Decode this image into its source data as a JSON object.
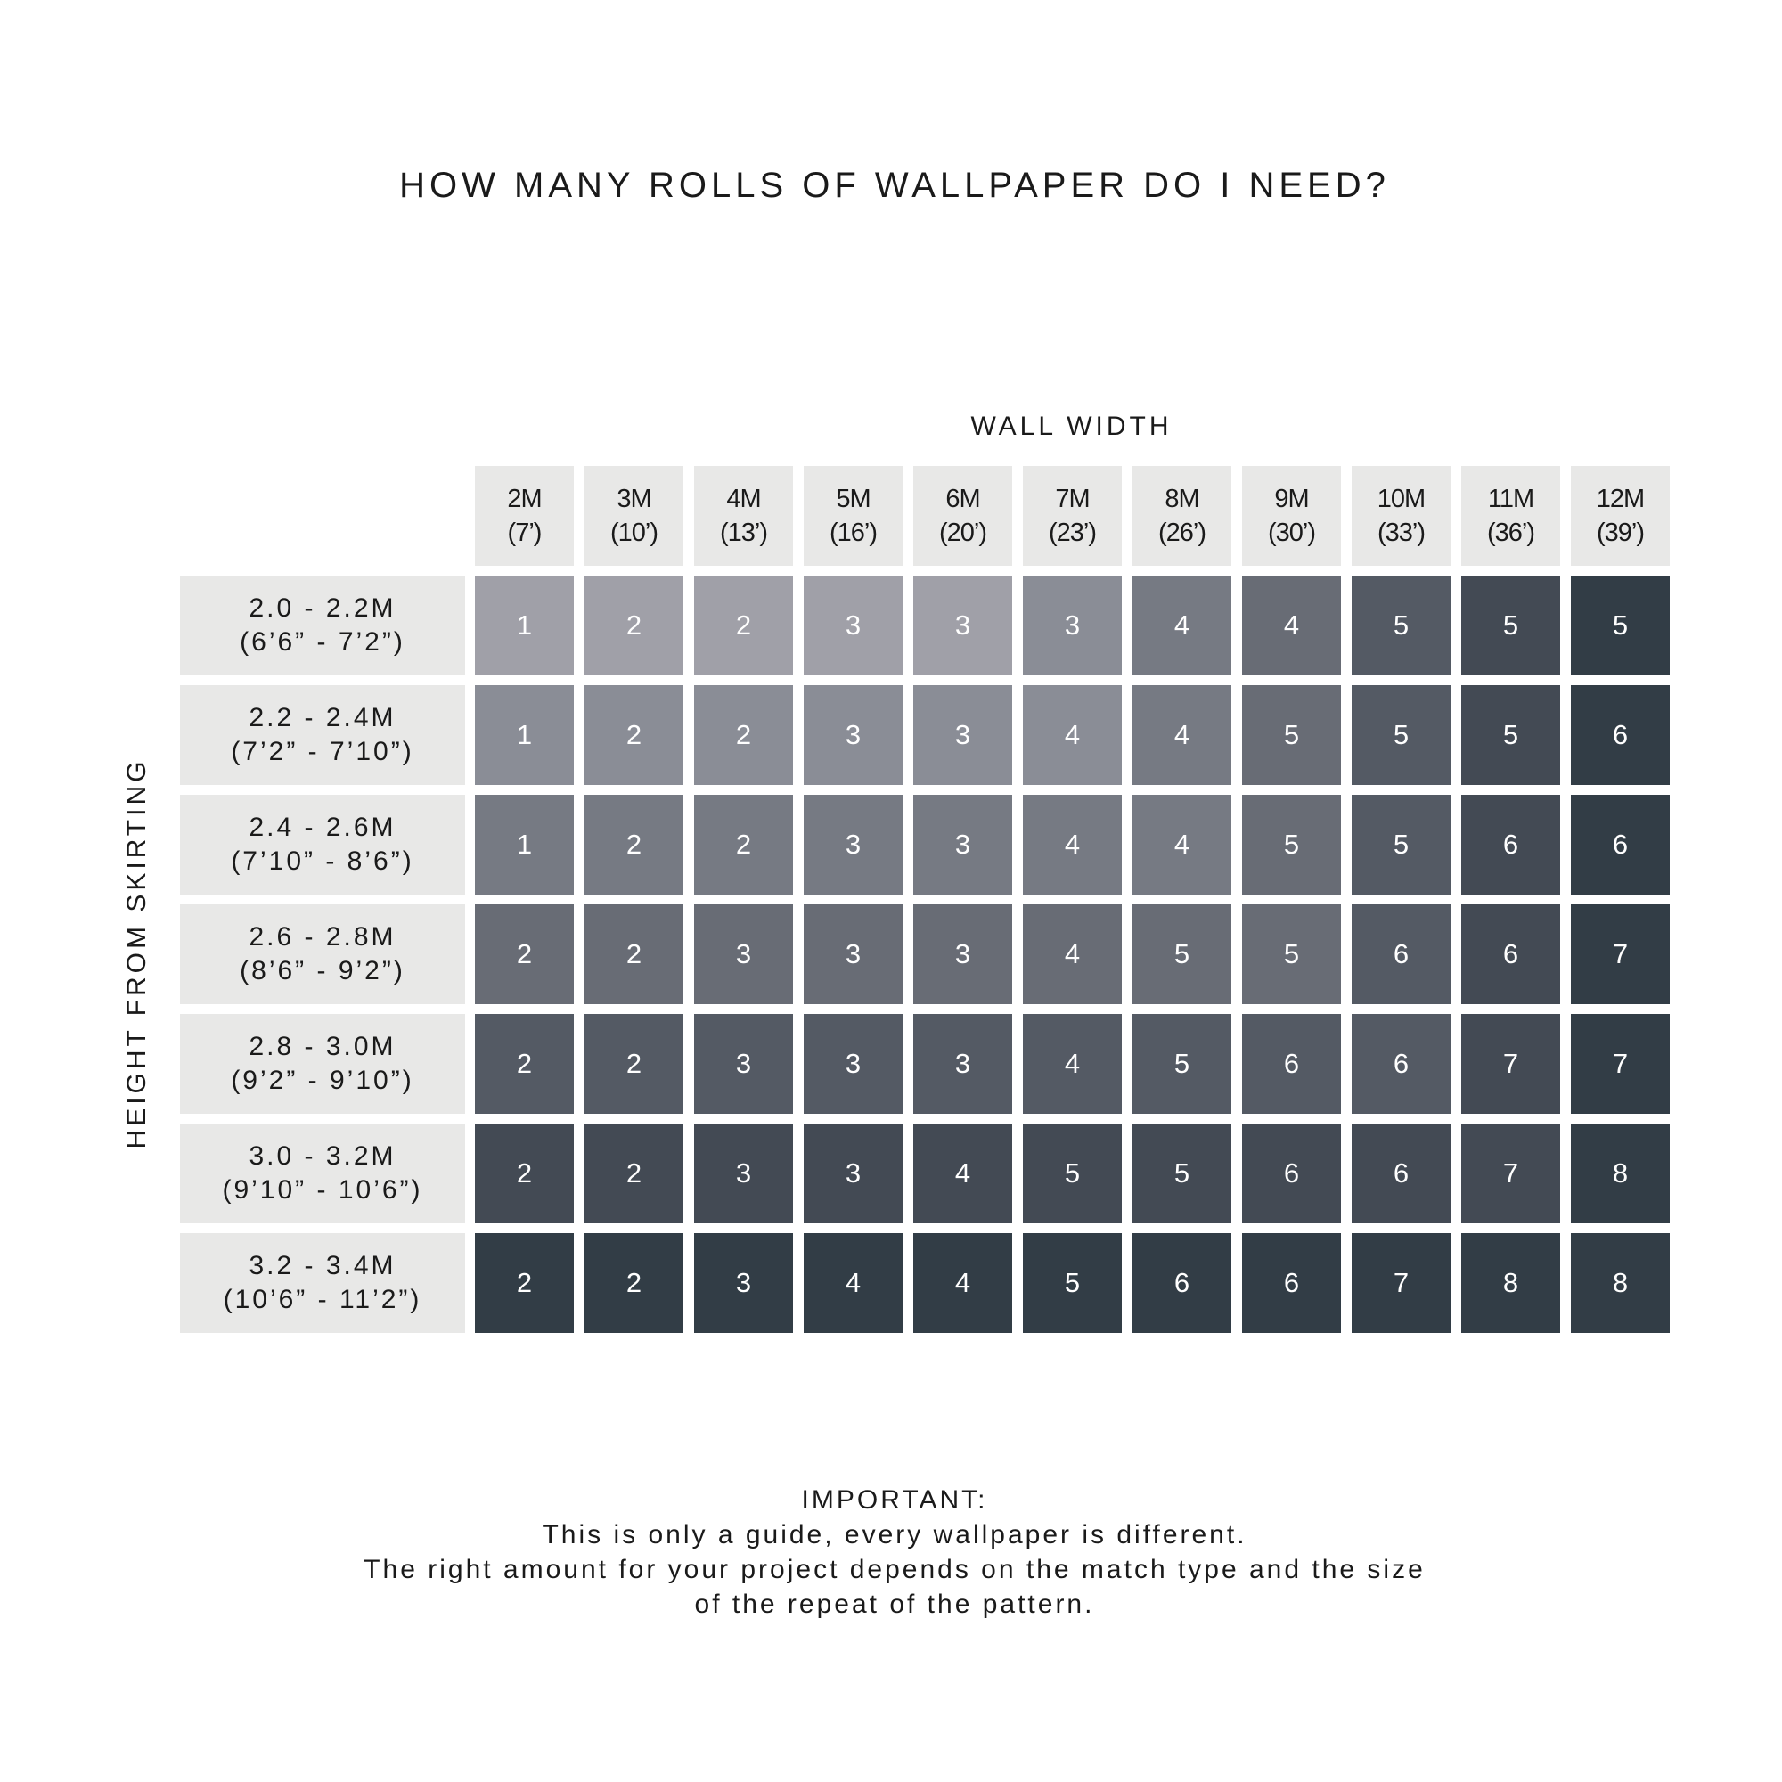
{
  "chart_data": {
    "type": "table",
    "title": "HOW MANY ROLLS OF WALLPAPER DO I NEED?",
    "xlabel": "WALL WIDTH",
    "ylabel": "HEIGHT FROM SKIRTING",
    "columns": [
      {
        "m": "2M",
        "ft": "(7’)"
      },
      {
        "m": "3M",
        "ft": "(10’)"
      },
      {
        "m": "4M",
        "ft": "(13’)"
      },
      {
        "m": "5M",
        "ft": "(16’)"
      },
      {
        "m": "6M",
        "ft": "(20’)"
      },
      {
        "m": "7M",
        "ft": "(23’)"
      },
      {
        "m": "8M",
        "ft": "(26’)"
      },
      {
        "m": "9M",
        "ft": "(30’)"
      },
      {
        "m": "10M",
        "ft": "(33’)"
      },
      {
        "m": "11M",
        "ft": "(36’)"
      },
      {
        "m": "12M",
        "ft": "(39’)"
      }
    ],
    "rows": [
      {
        "m": "2.0 - 2.2M",
        "ft": "(6’6” - 7’2”)"
      },
      {
        "m": "2.2 - 2.4M",
        "ft": "(7’2” - 7’10”)"
      },
      {
        "m": "2.4 - 2.6M",
        "ft": "(7’10” - 8’6”)"
      },
      {
        "m": "2.6 - 2.8M",
        "ft": "(8’6” - 9’2”)"
      },
      {
        "m": "2.8 - 3.0M",
        "ft": "(9’2” - 9’10”)"
      },
      {
        "m": "3.0 - 3.2M",
        "ft": "(9’10” - 10’6”)"
      },
      {
        "m": "3.2 - 3.4M",
        "ft": "(10’6” - 11’2”)"
      }
    ],
    "values": [
      [
        1,
        2,
        2,
        3,
        3,
        3,
        4,
        4,
        5,
        5,
        5
      ],
      [
        1,
        2,
        2,
        3,
        3,
        4,
        4,
        5,
        5,
        5,
        6
      ],
      [
        1,
        2,
        2,
        3,
        3,
        4,
        4,
        5,
        5,
        6,
        6
      ],
      [
        2,
        2,
        3,
        3,
        3,
        4,
        5,
        5,
        6,
        6,
        7
      ],
      [
        2,
        2,
        3,
        3,
        3,
        4,
        5,
        6,
        6,
        7,
        7
      ],
      [
        2,
        2,
        3,
        3,
        4,
        5,
        5,
        6,
        6,
        7,
        8
      ],
      [
        2,
        2,
        3,
        4,
        4,
        5,
        6,
        6,
        7,
        8,
        8
      ]
    ],
    "shade_palette": [
      "#a0a0a8",
      "#8a8d96",
      "#767a83",
      "#686c75",
      "#545a64",
      "#434a54",
      "#323d46"
    ],
    "header_color": "#e8e8e7"
  },
  "footer": {
    "heading": "IMPORTANT:",
    "lines": [
      "This is only a guide, every wallpaper is different.",
      "The right amount for your project depends on the match type and the size",
      "of the repeat of the pattern."
    ]
  }
}
